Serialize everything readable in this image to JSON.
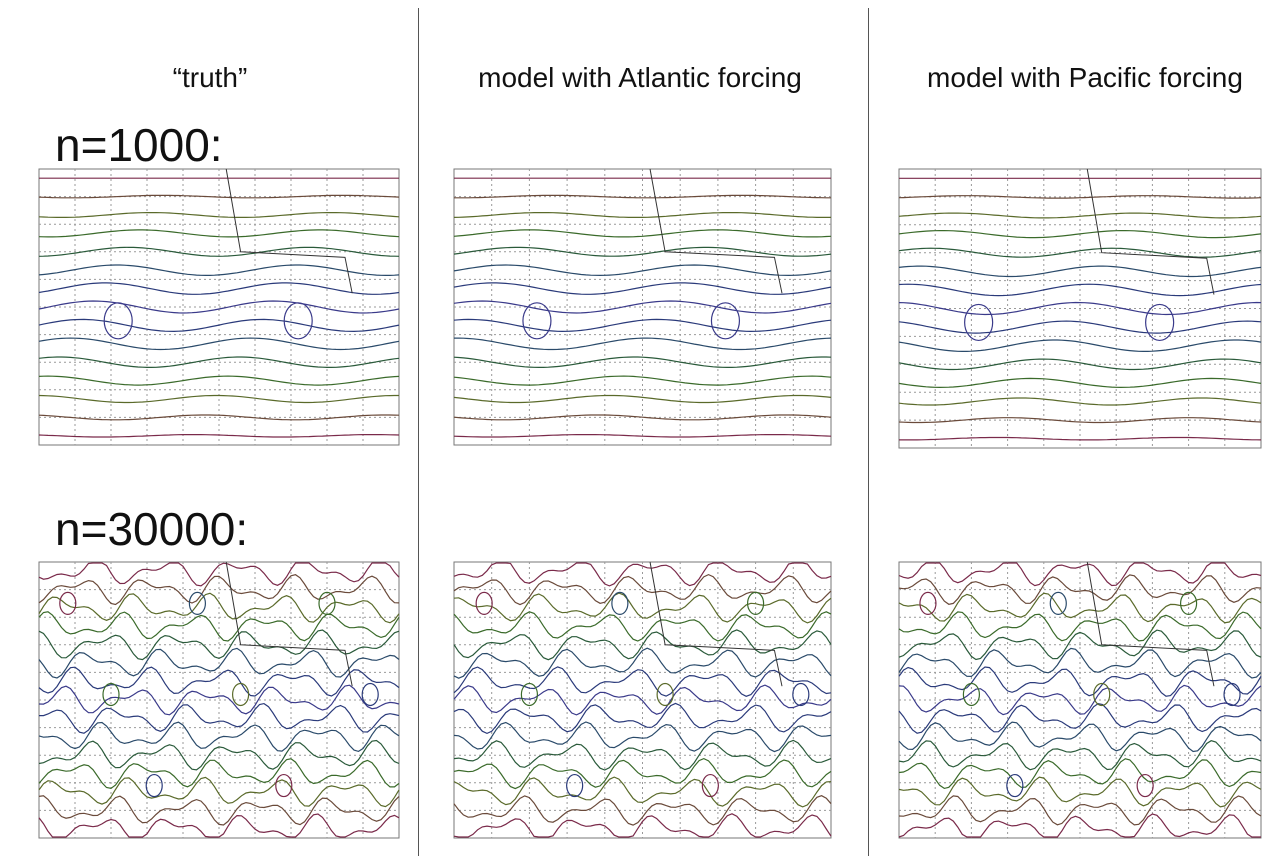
{
  "headers": [
    "“truth”",
    "model with Atlantic forcing",
    "model with Pacific forcing"
  ],
  "rows": [
    {
      "label": "n=1000:"
    },
    {
      "label": "n=30000:"
    }
  ]
}
